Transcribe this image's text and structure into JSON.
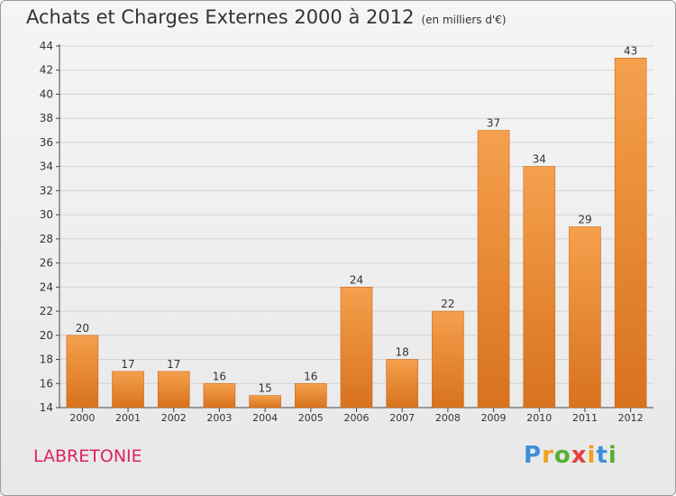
{
  "header": {
    "title": "Achats et Charges Externes 2000 à 2012",
    "unit": "(en milliers d'€)"
  },
  "commune": "LABRETONIE",
  "logo": {
    "text": "Proxiti",
    "parts": [
      "P",
      "r",
      "o",
      "x",
      "i",
      "t",
      "i"
    ]
  },
  "colors": {
    "bar_light": "#f5a04d",
    "bar_dark": "#d8721e",
    "commune_text": "#dd2266"
  },
  "chart_data": {
    "type": "bar",
    "title": "Achats et Charges Externes 2000 à 2012",
    "subtitle": "(en milliers d'€)",
    "xlabel": "",
    "ylabel": "",
    "categories": [
      "2000",
      "2001",
      "2002",
      "2003",
      "2004",
      "2005",
      "2006",
      "2007",
      "2008",
      "2009",
      "2010",
      "2011",
      "2012"
    ],
    "values": [
      20,
      17,
      17,
      16,
      15,
      16,
      24,
      18,
      22,
      37,
      34,
      29,
      43
    ],
    "ylim": [
      14,
      44
    ],
    "yticks": [
      14,
      16,
      18,
      20,
      22,
      24,
      26,
      28,
      30,
      32,
      34,
      36,
      38,
      40,
      42,
      44
    ],
    "grid": true
  }
}
